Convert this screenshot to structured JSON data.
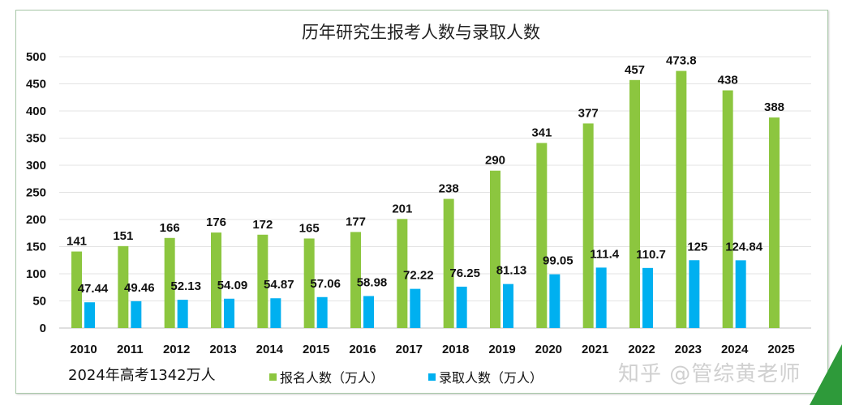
{
  "chart_data": {
    "type": "bar",
    "title": "历年研究生报考人数与录取人数",
    "categories": [
      "2010",
      "2011",
      "2012",
      "2013",
      "2014",
      "2015",
      "2016",
      "2017",
      "2018",
      "2019",
      "2020",
      "2021",
      "2022",
      "2023",
      "2024",
      "2025"
    ],
    "series": [
      {
        "name": "报名人数（万人）",
        "color": "#8cc63f",
        "values": [
          141,
          151,
          166,
          176,
          172,
          165,
          177,
          201,
          238,
          290,
          341,
          377,
          457,
          473.8,
          438,
          388
        ]
      },
      {
        "name": "录取人数（万人）",
        "color": "#00b0f0",
        "values": [
          47.44,
          49.46,
          52.13,
          54.09,
          54.87,
          57.06,
          58.98,
          72.22,
          76.25,
          81.13,
          99.05,
          111.4,
          110.7,
          125,
          124.84,
          null
        ]
      }
    ],
    "yticks": [
      "0",
      "50",
      "100",
      "150",
      "200",
      "250",
      "300",
      "350",
      "400",
      "450",
      "500"
    ],
    "ylim": [
      0,
      500
    ],
    "grid": true,
    "legend_placement": "bottom",
    "xlabel": "",
    "ylabel": ""
  },
  "note": "2024年高考1342万人",
  "watermark": "知乎 @管综黄老师"
}
